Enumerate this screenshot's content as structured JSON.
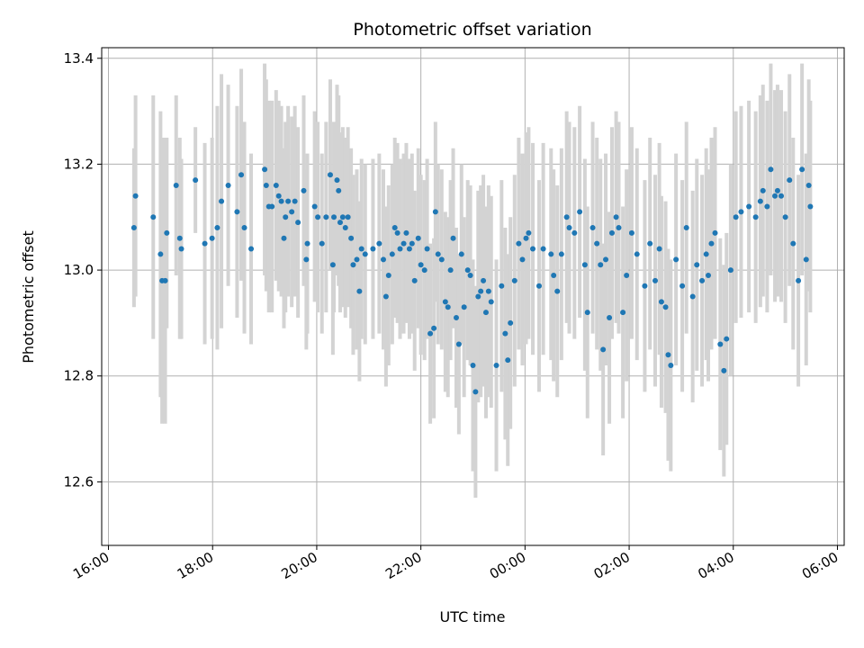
{
  "chart_data": {
    "type": "scatter",
    "title": "Photometric offset variation",
    "xlabel": "UTC time",
    "ylabel": "Photometric offset",
    "x_ticks": [
      "16:00",
      "18:00",
      "20:00",
      "22:00",
      "00:00",
      "02:00",
      "04:00",
      "06:00"
    ],
    "y_ticks": [
      "12.6",
      "12.8",
      "13.0",
      "13.2",
      "13.4"
    ],
    "xlim": [
      "15:52",
      "06:08 (+1 day)"
    ],
    "ylim": [
      12.48,
      13.42
    ],
    "grid": true,
    "errorbar_color": "#d3d3d3",
    "point_color": "#1f77b4",
    "series": [
      {
        "x_unit": "hours after 16:00 UTC",
        "points": [
          [
            0.49,
            13.08,
            0.15
          ],
          [
            0.52,
            13.14,
            0.19
          ],
          [
            0.86,
            13.1,
            0.23
          ],
          [
            1.0,
            13.03,
            0.27
          ],
          [
            1.03,
            12.98,
            0.27
          ],
          [
            1.09,
            12.98,
            0.27
          ],
          [
            1.12,
            13.07,
            0.18
          ],
          [
            1.3,
            13.16,
            0.17
          ],
          [
            1.37,
            13.06,
            0.19
          ],
          [
            1.4,
            13.04,
            0.17
          ],
          [
            1.67,
            13.17,
            0.1
          ],
          [
            1.85,
            13.05,
            0.19
          ],
          [
            1.99,
            13.06,
            0.19
          ],
          [
            2.09,
            13.08,
            0.23
          ],
          [
            2.17,
            13.13,
            0.24
          ],
          [
            2.3,
            13.16,
            0.19
          ],
          [
            2.47,
            13.11,
            0.2
          ],
          [
            2.55,
            13.18,
            0.2
          ],
          [
            2.61,
            13.08,
            0.2
          ],
          [
            2.74,
            13.04,
            0.18
          ],
          [
            3.0,
            13.19,
            0.2
          ],
          [
            3.03,
            13.16,
            0.2
          ],
          [
            3.08,
            13.12,
            0.2
          ],
          [
            3.14,
            13.12,
            0.2
          ],
          [
            3.22,
            13.16,
            0.18
          ],
          [
            3.27,
            13.14,
            0.18
          ],
          [
            3.32,
            13.13,
            0.18
          ],
          [
            3.37,
            13.06,
            0.17
          ],
          [
            3.4,
            13.1,
            0.18
          ],
          [
            3.45,
            13.13,
            0.18
          ],
          [
            3.52,
            13.11,
            0.18
          ],
          [
            3.58,
            13.13,
            0.18
          ],
          [
            3.64,
            13.09,
            0.18
          ],
          [
            3.75,
            13.15,
            0.18
          ],
          [
            3.8,
            13.02,
            0.17
          ],
          [
            3.82,
            13.05,
            0.17
          ],
          [
            3.96,
            13.12,
            0.18
          ],
          [
            4.02,
            13.1,
            0.18
          ],
          [
            4.1,
            13.05,
            0.17
          ],
          [
            4.18,
            13.1,
            0.18
          ],
          [
            4.26,
            13.18,
            0.18
          ],
          [
            4.31,
            13.01,
            0.17
          ],
          [
            4.33,
            13.1,
            0.18
          ],
          [
            4.39,
            13.17,
            0.18
          ],
          [
            4.42,
            13.15,
            0.18
          ],
          [
            4.45,
            13.09,
            0.17
          ],
          [
            4.5,
            13.1,
            0.17
          ],
          [
            4.55,
            13.08,
            0.17
          ],
          [
            4.6,
            13.1,
            0.17
          ],
          [
            4.66,
            13.06,
            0.17
          ],
          [
            4.7,
            13.01,
            0.17
          ],
          [
            4.77,
            13.02,
            0.17
          ],
          [
            4.82,
            12.96,
            0.17
          ],
          [
            4.86,
            13.04,
            0.17
          ],
          [
            4.93,
            13.03,
            0.17
          ],
          [
            5.08,
            13.04,
            0.17
          ],
          [
            5.2,
            13.05,
            0.17
          ],
          [
            5.28,
            13.02,
            0.17
          ],
          [
            5.33,
            12.95,
            0.17
          ],
          [
            5.38,
            12.99,
            0.17
          ],
          [
            5.45,
            13.03,
            0.17
          ],
          [
            5.5,
            13.08,
            0.17
          ],
          [
            5.55,
            13.07,
            0.17
          ],
          [
            5.6,
            13.04,
            0.17
          ],
          [
            5.67,
            13.05,
            0.17
          ],
          [
            5.72,
            13.07,
            0.17
          ],
          [
            5.78,
            13.04,
            0.17
          ],
          [
            5.83,
            13.05,
            0.17
          ],
          [
            5.88,
            12.98,
            0.17
          ],
          [
            5.95,
            13.06,
            0.17
          ],
          [
            6.0,
            13.01,
            0.17
          ],
          [
            6.07,
            13.0,
            0.17
          ],
          [
            6.12,
            13.04,
            0.17
          ],
          [
            6.18,
            12.88,
            0.17
          ],
          [
            6.25,
            12.89,
            0.17
          ],
          [
            6.28,
            13.11,
            0.17
          ],
          [
            6.33,
            13.03,
            0.17
          ],
          [
            6.4,
            13.02,
            0.17
          ],
          [
            6.47,
            12.94,
            0.17
          ],
          [
            6.52,
            12.93,
            0.17
          ],
          [
            6.57,
            13.0,
            0.17
          ],
          [
            6.62,
            13.06,
            0.17
          ],
          [
            6.68,
            12.91,
            0.17
          ],
          [
            6.73,
            12.86,
            0.17
          ],
          [
            6.78,
            13.03,
            0.17
          ],
          [
            6.83,
            12.93,
            0.17
          ],
          [
            6.9,
            13.0,
            0.17
          ],
          [
            6.95,
            12.99,
            0.17
          ],
          [
            7.0,
            12.82,
            0.2
          ],
          [
            7.05,
            12.77,
            0.2
          ],
          [
            7.1,
            12.95,
            0.2
          ],
          [
            7.15,
            12.96,
            0.2
          ],
          [
            7.2,
            12.98,
            0.2
          ],
          [
            7.25,
            12.92,
            0.2
          ],
          [
            7.3,
            12.96,
            0.2
          ],
          [
            7.35,
            12.94,
            0.2
          ],
          [
            7.45,
            12.82,
            0.2
          ],
          [
            7.55,
            12.97,
            0.2
          ],
          [
            7.62,
            12.88,
            0.2
          ],
          [
            7.67,
            12.83,
            0.2
          ],
          [
            7.72,
            12.9,
            0.2
          ],
          [
            7.8,
            12.98,
            0.2
          ],
          [
            7.88,
            13.05,
            0.2
          ],
          [
            7.95,
            13.02,
            0.2
          ],
          [
            8.02,
            13.06,
            0.2
          ],
          [
            8.07,
            13.07,
            0.2
          ],
          [
            8.15,
            13.04,
            0.2
          ],
          [
            8.27,
            12.97,
            0.2
          ],
          [
            8.35,
            13.04,
            0.2
          ],
          [
            8.5,
            13.03,
            0.2
          ],
          [
            8.55,
            12.99,
            0.2
          ],
          [
            8.62,
            12.96,
            0.2
          ],
          [
            8.7,
            13.03,
            0.2
          ],
          [
            8.8,
            13.1,
            0.2
          ],
          [
            8.85,
            13.08,
            0.2
          ],
          [
            8.95,
            13.07,
            0.2
          ],
          [
            9.05,
            13.11,
            0.2
          ],
          [
            9.15,
            13.01,
            0.2
          ],
          [
            9.2,
            12.92,
            0.2
          ],
          [
            9.3,
            13.08,
            0.2
          ],
          [
            9.38,
            13.05,
            0.2
          ],
          [
            9.45,
            13.01,
            0.2
          ],
          [
            9.5,
            12.85,
            0.2
          ],
          [
            9.55,
            13.02,
            0.2
          ],
          [
            9.62,
            12.91,
            0.2
          ],
          [
            9.67,
            13.07,
            0.2
          ],
          [
            9.75,
            13.1,
            0.2
          ],
          [
            9.8,
            13.08,
            0.2
          ],
          [
            9.88,
            12.92,
            0.2
          ],
          [
            9.95,
            12.99,
            0.2
          ],
          [
            10.05,
            13.07,
            0.2
          ],
          [
            10.15,
            13.03,
            0.2
          ],
          [
            10.3,
            12.97,
            0.2
          ],
          [
            10.4,
            13.05,
            0.2
          ],
          [
            10.5,
            12.98,
            0.2
          ],
          [
            10.58,
            13.04,
            0.2
          ],
          [
            10.62,
            12.94,
            0.2
          ],
          [
            10.7,
            12.93,
            0.2
          ],
          [
            10.75,
            12.84,
            0.2
          ],
          [
            10.8,
            12.82,
            0.2
          ],
          [
            10.9,
            13.02,
            0.2
          ],
          [
            11.02,
            12.97,
            0.2
          ],
          [
            11.1,
            13.08,
            0.2
          ],
          [
            11.22,
            12.95,
            0.2
          ],
          [
            11.3,
            13.01,
            0.2
          ],
          [
            11.4,
            12.98,
            0.2
          ],
          [
            11.48,
            13.03,
            0.2
          ],
          [
            11.52,
            12.99,
            0.2
          ],
          [
            11.58,
            13.05,
            0.2
          ],
          [
            11.65,
            13.07,
            0.2
          ],
          [
            11.75,
            12.86,
            0.2
          ],
          [
            11.82,
            12.81,
            0.2
          ],
          [
            11.87,
            12.87,
            0.2
          ],
          [
            11.95,
            13.0,
            0.2
          ],
          [
            12.05,
            13.1,
            0.2
          ],
          [
            12.15,
            13.11,
            0.2
          ],
          [
            12.3,
            13.12,
            0.2
          ],
          [
            12.43,
            13.1,
            0.2
          ],
          [
            12.52,
            13.13,
            0.2
          ],
          [
            12.57,
            13.15,
            0.2
          ],
          [
            12.65,
            13.12,
            0.2
          ],
          [
            12.72,
            13.19,
            0.2
          ],
          [
            12.8,
            13.14,
            0.2
          ],
          [
            12.85,
            13.15,
            0.2
          ],
          [
            12.92,
            13.14,
            0.2
          ],
          [
            13.0,
            13.1,
            0.2
          ],
          [
            13.08,
            13.17,
            0.2
          ],
          [
            13.15,
            13.05,
            0.2
          ],
          [
            13.25,
            12.98,
            0.2
          ],
          [
            13.32,
            13.19,
            0.2
          ],
          [
            13.4,
            13.02,
            0.2
          ],
          [
            13.45,
            13.16,
            0.2
          ],
          [
            13.48,
            13.12,
            0.2
          ]
        ]
      }
    ]
  }
}
